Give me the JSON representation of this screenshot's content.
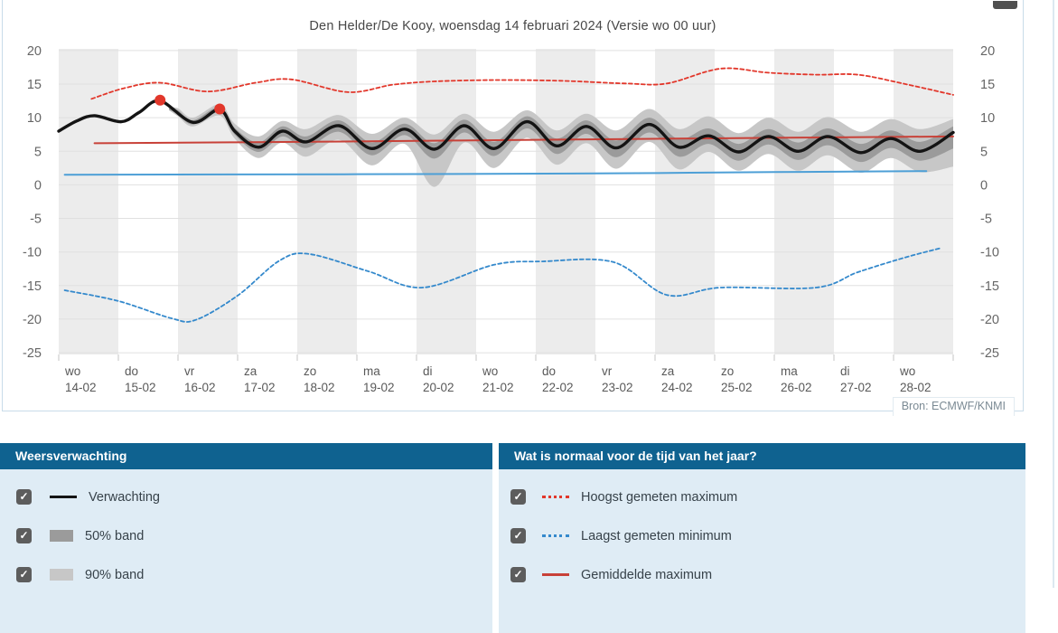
{
  "page": {
    "source": "Bron: ECMWF/KNMI"
  },
  "colors": {
    "header_bar": "#0f6290",
    "panel_background": "#dfecf5",
    "card_border": "#c9dce9",
    "grid": "#e0e0e0",
    "day_column": "#ececec",
    "forecast_black": "#141414",
    "band50": "#9b9b9b",
    "band90": "#c7c7c7",
    "red_dashed": "#e2372b",
    "red_solid": "#c84138",
    "blue_dashed": "#3489cc",
    "blue_solid": "#4d9fd6",
    "marker_red": "#e2372b",
    "axis_text": "#666666",
    "xlabel_text": "#595959"
  },
  "chart_data": {
    "type": "line",
    "title": "Den Helder/De Kooy, woensdag 14 februari 2024 (Versie wo 00 uur)",
    "ylim": [
      -25,
      20
    ],
    "yticks": [
      20,
      15,
      10,
      5,
      0,
      -5,
      -10,
      -15,
      -20,
      -25
    ],
    "grid": "on",
    "x_axis": {
      "unit": "days",
      "days": [
        {
          "name": "wo",
          "date": "14-02"
        },
        {
          "name": "do",
          "date": "15-02"
        },
        {
          "name": "vr",
          "date": "16-02"
        },
        {
          "name": "za",
          "date": "17-02"
        },
        {
          "name": "zo",
          "date": "18-02"
        },
        {
          "name": "ma",
          "date": "19-02"
        },
        {
          "name": "di",
          "date": "20-02"
        },
        {
          "name": "wo",
          "date": "21-02"
        },
        {
          "name": "do",
          "date": "22-02"
        },
        {
          "name": "vr",
          "date": "23-02"
        },
        {
          "name": "za",
          "date": "24-02"
        },
        {
          "name": "zo",
          "date": "25-02"
        },
        {
          "name": "ma",
          "date": "26-02"
        },
        {
          "name": "di",
          "date": "27-02"
        },
        {
          "name": "wo",
          "date": "28-02"
        }
      ]
    },
    "band90": {
      "t": [
        1.85,
        2.0,
        2.25,
        2.7,
        2.95,
        3.35,
        3.75,
        4.15,
        4.7,
        5.25,
        5.8,
        6.3,
        6.8,
        7.3,
        7.85,
        8.35,
        8.85,
        9.35,
        9.9,
        10.4,
        10.9,
        11.4,
        11.9,
        12.4,
        12.9,
        13.45,
        13.95,
        14.45,
        15
      ],
      "lo": [
        11.1,
        10.2,
        8.7,
        10.3,
        6.9,
        4.0,
        6.3,
        4.2,
        6.7,
        2.9,
        6.1,
        -0.3,
        6.3,
        2.5,
        7.0,
        3.0,
        6.2,
        2.4,
        6.4,
        2.3,
        4.9,
        2.1,
        4.6,
        2.1,
        4.4,
        1.8,
        4.0,
        1.9,
        2.7
      ],
      "hi": [
        11.5,
        11.4,
        10.0,
        12.0,
        9.1,
        7.2,
        9.5,
        8.3,
        10.4,
        7.6,
        10.0,
        7.5,
        10.6,
        7.9,
        11.1,
        8.1,
        10.6,
        8.1,
        11.3,
        8.3,
        10.2,
        7.7,
        10.0,
        7.9,
        10.1,
        7.9,
        9.8,
        8.3,
        9.8
      ]
    },
    "band50": {
      "t": [
        1.85,
        2.0,
        2.25,
        2.7,
        2.95,
        3.35,
        3.75,
        4.15,
        4.7,
        5.25,
        5.8,
        6.3,
        6.8,
        7.3,
        7.85,
        8.35,
        8.85,
        9.35,
        9.9,
        10.4,
        10.9,
        11.4,
        11.9,
        12.4,
        12.9,
        13.45,
        13.95,
        14.45,
        15
      ],
      "lo": [
        11.2,
        10.5,
        9.0,
        10.8,
        7.5,
        4.9,
        7.2,
        5.5,
        7.9,
        4.4,
        7.4,
        3.9,
        7.8,
        4.3,
        8.4,
        4.6,
        7.6,
        4.1,
        7.8,
        4.2,
        6.1,
        3.6,
        6.0,
        3.7,
        5.9,
        3.4,
        5.5,
        3.6,
        5.4
      ],
      "hi": [
        11.4,
        11.1,
        9.6,
        11.6,
        8.5,
        6.3,
        8.7,
        7.2,
        9.6,
        6.3,
        9.1,
        6.2,
        9.7,
        6.4,
        10.2,
        6.9,
        9.6,
        6.6,
        10.0,
        6.8,
        8.4,
        6.1,
        8.3,
        6.3,
        8.4,
        6.1,
        8.1,
        6.4,
        8.7
      ]
    },
    "series": [
      {
        "id": "blue-solid-line",
        "name": "",
        "color": "#4d9fd6",
        "width": 2,
        "points": [
          [
            0.1,
            1.5
          ],
          [
            3,
            1.55
          ],
          [
            6,
            1.6
          ],
          [
            9,
            1.7
          ],
          [
            12,
            1.9
          ],
          [
            13.8,
            2.0
          ],
          [
            14.55,
            2.05
          ]
        ]
      },
      {
        "id": "gemiddelde-maximum",
        "name": "Gemiddelde maximum",
        "color": "#c84138",
        "width": 2,
        "points": [
          [
            0.6,
            6.2
          ],
          [
            4,
            6.4
          ],
          [
            8,
            6.7
          ],
          [
            12,
            7.0
          ],
          [
            15,
            7.2
          ]
        ]
      },
      {
        "id": "hoogst-gemeten-maximum",
        "name": "Hoogst gemeten maximum",
        "color": "#e2372b",
        "width": 1.8,
        "dash": "4,3",
        "points": [
          [
            0.55,
            12.8
          ],
          [
            1.1,
            14.4
          ],
          [
            1.7,
            15.2
          ],
          [
            2.5,
            13.9
          ],
          [
            3.3,
            15.2
          ],
          [
            3.9,
            15.7
          ],
          [
            4.85,
            13.8
          ],
          [
            5.6,
            14.9
          ],
          [
            6.3,
            15.4
          ],
          [
            7.3,
            15.6
          ],
          [
            8.4,
            15.5
          ],
          [
            9.5,
            15.1
          ],
          [
            10.2,
            15.1
          ],
          [
            11.1,
            17.3
          ],
          [
            11.9,
            16.7
          ],
          [
            12.7,
            16.4
          ],
          [
            13.4,
            16.4
          ],
          [
            14.2,
            15.0
          ],
          [
            15,
            13.4
          ]
        ]
      },
      {
        "id": "laagst-gemeten-minimum",
        "name": "Laagst gemeten minimum",
        "color": "#3489cc",
        "width": 1.8,
        "dash": "4,3",
        "points": [
          [
            0.1,
            -15.7
          ],
          [
            1.0,
            -17.3
          ],
          [
            1.9,
            -19.9
          ],
          [
            2.3,
            -20.1
          ],
          [
            3.0,
            -16.5
          ],
          [
            3.7,
            -11.3
          ],
          [
            4.2,
            -10.3
          ],
          [
            5.2,
            -12.9
          ],
          [
            6.1,
            -15.3
          ],
          [
            7.3,
            -11.9
          ],
          [
            8.1,
            -11.4
          ],
          [
            9.3,
            -11.5
          ],
          [
            10.2,
            -16.4
          ],
          [
            11.1,
            -15.3
          ],
          [
            12.7,
            -15.3
          ],
          [
            13.4,
            -13.0
          ],
          [
            14.2,
            -10.8
          ],
          [
            14.8,
            -9.4
          ]
        ]
      },
      {
        "id": "verwachting",
        "name": "Verwachting",
        "color": "#141414",
        "width": 3.4,
        "points": [
          [
            0,
            8.0
          ],
          [
            0.3,
            9.5
          ],
          [
            0.6,
            10.3
          ],
          [
            1.05,
            9.4
          ],
          [
            1.35,
            10.8
          ],
          [
            1.7,
            12.5
          ],
          [
            2.25,
            9.3
          ],
          [
            2.7,
            11.2
          ],
          [
            2.95,
            8.0
          ],
          [
            3.35,
            5.6
          ],
          [
            3.75,
            8.0
          ],
          [
            4.15,
            6.4
          ],
          [
            4.7,
            8.8
          ],
          [
            5.25,
            5.4
          ],
          [
            5.8,
            8.3
          ],
          [
            6.3,
            5.3
          ],
          [
            6.8,
            8.8
          ],
          [
            7.3,
            5.4
          ],
          [
            7.85,
            9.4
          ],
          [
            8.35,
            5.8
          ],
          [
            8.85,
            8.7
          ],
          [
            9.35,
            5.5
          ],
          [
            9.9,
            9.0
          ],
          [
            10.4,
            5.6
          ],
          [
            10.9,
            7.3
          ],
          [
            11.4,
            4.9
          ],
          [
            11.9,
            7.2
          ],
          [
            12.4,
            5.0
          ],
          [
            12.9,
            7.2
          ],
          [
            13.45,
            4.8
          ],
          [
            13.95,
            6.9
          ],
          [
            14.45,
            5.0
          ],
          [
            15,
            7.8
          ]
        ]
      }
    ],
    "markers": {
      "color": "#e2372b",
      "radius": 6,
      "points": [
        [
          1.7,
          12.6
        ],
        [
          2.7,
          11.3
        ]
      ]
    }
  },
  "legend": {
    "left": {
      "title": "Weersverwachting",
      "items": [
        {
          "label": "Verwachting",
          "swatch": "line-black",
          "checked": true
        },
        {
          "label": "50% band",
          "swatch": "band-dark",
          "checked": true
        },
        {
          "label": "90% band",
          "swatch": "band-light",
          "checked": true
        }
      ]
    },
    "right": {
      "title": "Wat is normaal voor de tijd van het jaar?",
      "items": [
        {
          "label": "Hoogst gemeten maximum",
          "swatch": "dotted-red",
          "checked": true
        },
        {
          "label": "Laagst gemeten minimum",
          "swatch": "dotted-blue",
          "checked": true
        },
        {
          "label": "Gemiddelde maximum",
          "swatch": "line-red",
          "checked": true
        }
      ]
    }
  }
}
